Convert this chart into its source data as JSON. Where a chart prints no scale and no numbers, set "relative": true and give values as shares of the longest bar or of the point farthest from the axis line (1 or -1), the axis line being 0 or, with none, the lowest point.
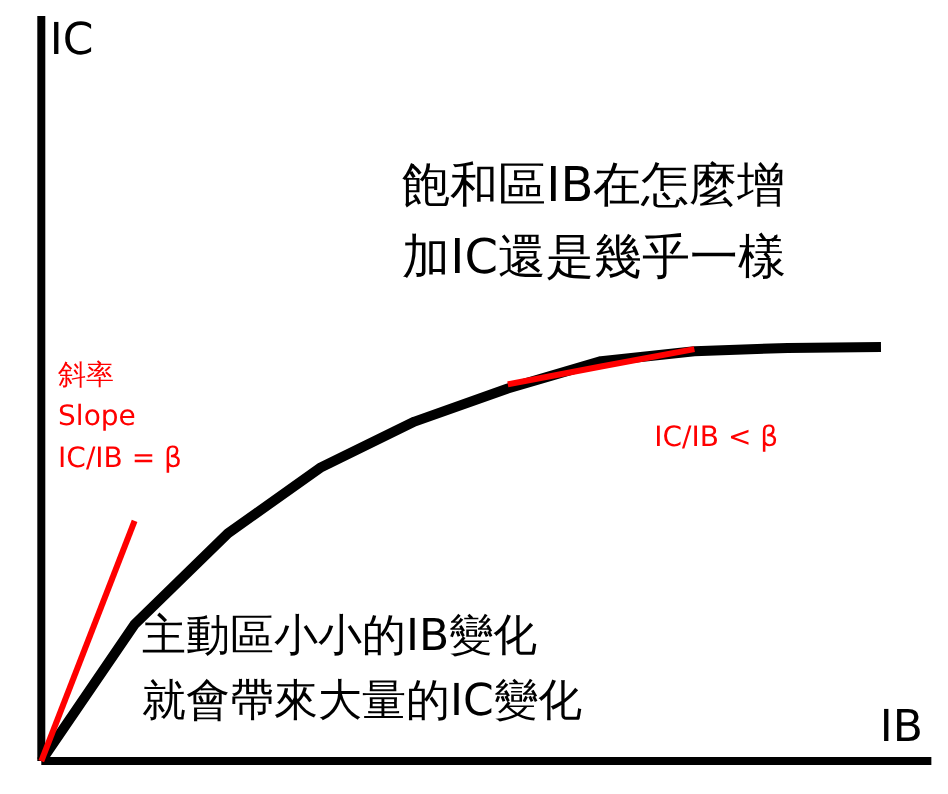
{
  "chart_data": {
    "type": "line",
    "relative": true,
    "xlabel": "IB",
    "categories": [
      null,
      null,
      null,
      null,
      null,
      null,
      null,
      null,
      null,
      null
    ],
    "series": [
      {
        "color": "#000000",
        "values": [
          0,
          0.33,
          0.55,
          0.71,
          0.82,
          0.9,
          0.966,
          0.99,
          0.998,
          1.0
        ]
      },
      {
        "type": "line",
        "color": "#ff0000",
        "values": [
          0,
          0.58,
          null,
          null,
          null,
          null,
          null,
          null,
          null,
          null
        ]
      },
      {
        "type": "line",
        "color": "#ff0000",
        "values": [
          null,
          null,
          null,
          null,
          null,
          0.91,
          0.953,
          0.995,
          null,
          null
        ]
      }
    ],
    "annotations": [
      "飽和區IB在怎麼增加IC還是幾乎一樣",
      "主動區小小的IB變化就會帶來大量的IC變化",
      "斜率\nSlope\nIC/IB = β",
      "IC/IB < β",
      "IC"
    ],
    "grid": false,
    "marker": "none",
    "line_style": "solid"
  }
}
